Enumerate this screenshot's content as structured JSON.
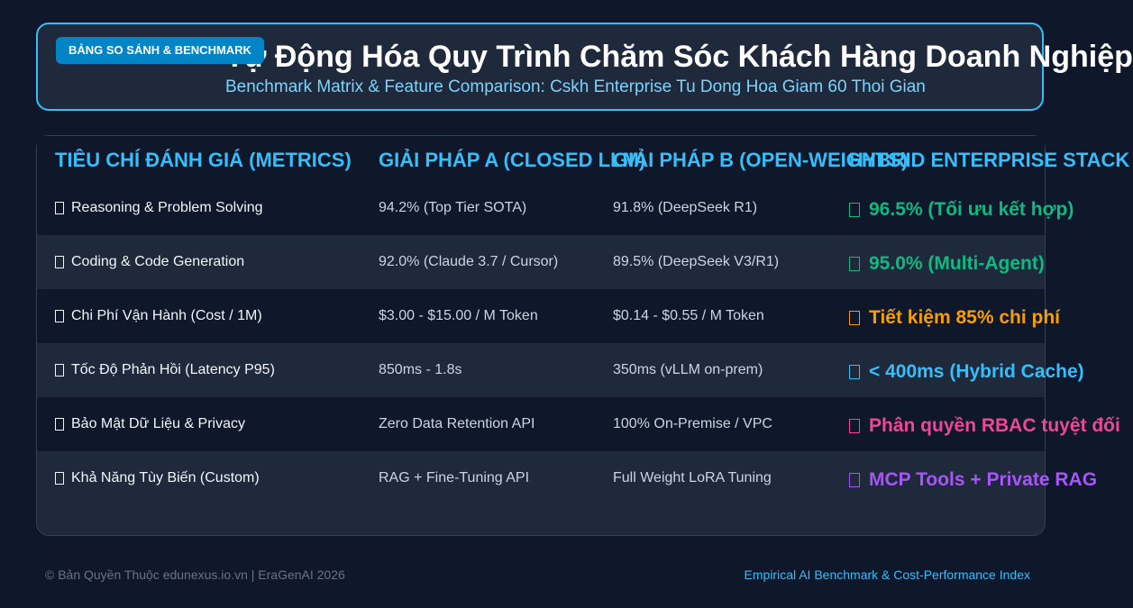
{
  "header": {
    "badge": "BẢNG SO SÁNH & BENCHMARK",
    "title": "Tự Động Hóa Quy Trình Chăm Sóc Khách Hàng Doanh Nghiệp",
    "subtitle": "Benchmark Matrix & Feature Comparison: Cskh Enterprise Tu Dong Hoa Giam 60 Thoi Gian"
  },
  "table": {
    "columns": [
      "TIÊU CHÍ ĐÁNH GIÁ (METRICS)",
      "GIẢI PHÁP A (CLOSED LLM)",
      "GIẢI PHÁP B (OPEN-WEIGHTS)",
      "HYBRID ENTERPRISE STACK"
    ],
    "rows": [
      {
        "metric": "Reasoning & Problem Solving",
        "a": "94.2% (Top Tier SOTA)",
        "b": "91.8% (DeepSeek R1)",
        "hybrid": "96.5% (Tối ưu kết hợp)",
        "color": "#10b981"
      },
      {
        "metric": "Coding & Code Generation",
        "a": "92.0% (Claude 3.7 / Cursor)",
        "b": "89.5% (DeepSeek V3/R1)",
        "hybrid": "95.0% (Multi-Agent)",
        "color": "#10b981"
      },
      {
        "metric": "Chi Phí Vận Hành (Cost / 1M)",
        "a": "$3.00 - $15.00 / M Token",
        "b": "$0.14 - $0.55 / M Token",
        "hybrid": "Tiết kiệm 85% chi phí",
        "color": "#f59e0b"
      },
      {
        "metric": "Tốc Độ Phản Hồi (Latency P95)",
        "a": "850ms - 1.8s",
        "b": "350ms (vLLM on-prem)",
        "hybrid": "< 400ms (Hybrid Cache)",
        "color": "#38bdf8"
      },
      {
        "metric": "Bảo Mật Dữ Liệu & Privacy",
        "a": "Zero Data Retention API",
        "b": "100% On-Premise / VPC",
        "hybrid": "Phân quyền RBAC tuyệt đối",
        "color": "#ec4899"
      },
      {
        "metric": "Khả Năng Tùy Biến (Custom)",
        "a": "RAG + Fine-Tuning API",
        "b": "Full Weight LoRA Tuning",
        "hybrid": "MCP Tools + Private RAG",
        "color": "#a855f7"
      }
    ]
  },
  "footer": {
    "copyright": "© Bản Quyền Thuộc edunexus.io.vn | EraGenAI 2026",
    "tagline": "Empirical AI Benchmark & Cost-Performance Index"
  }
}
